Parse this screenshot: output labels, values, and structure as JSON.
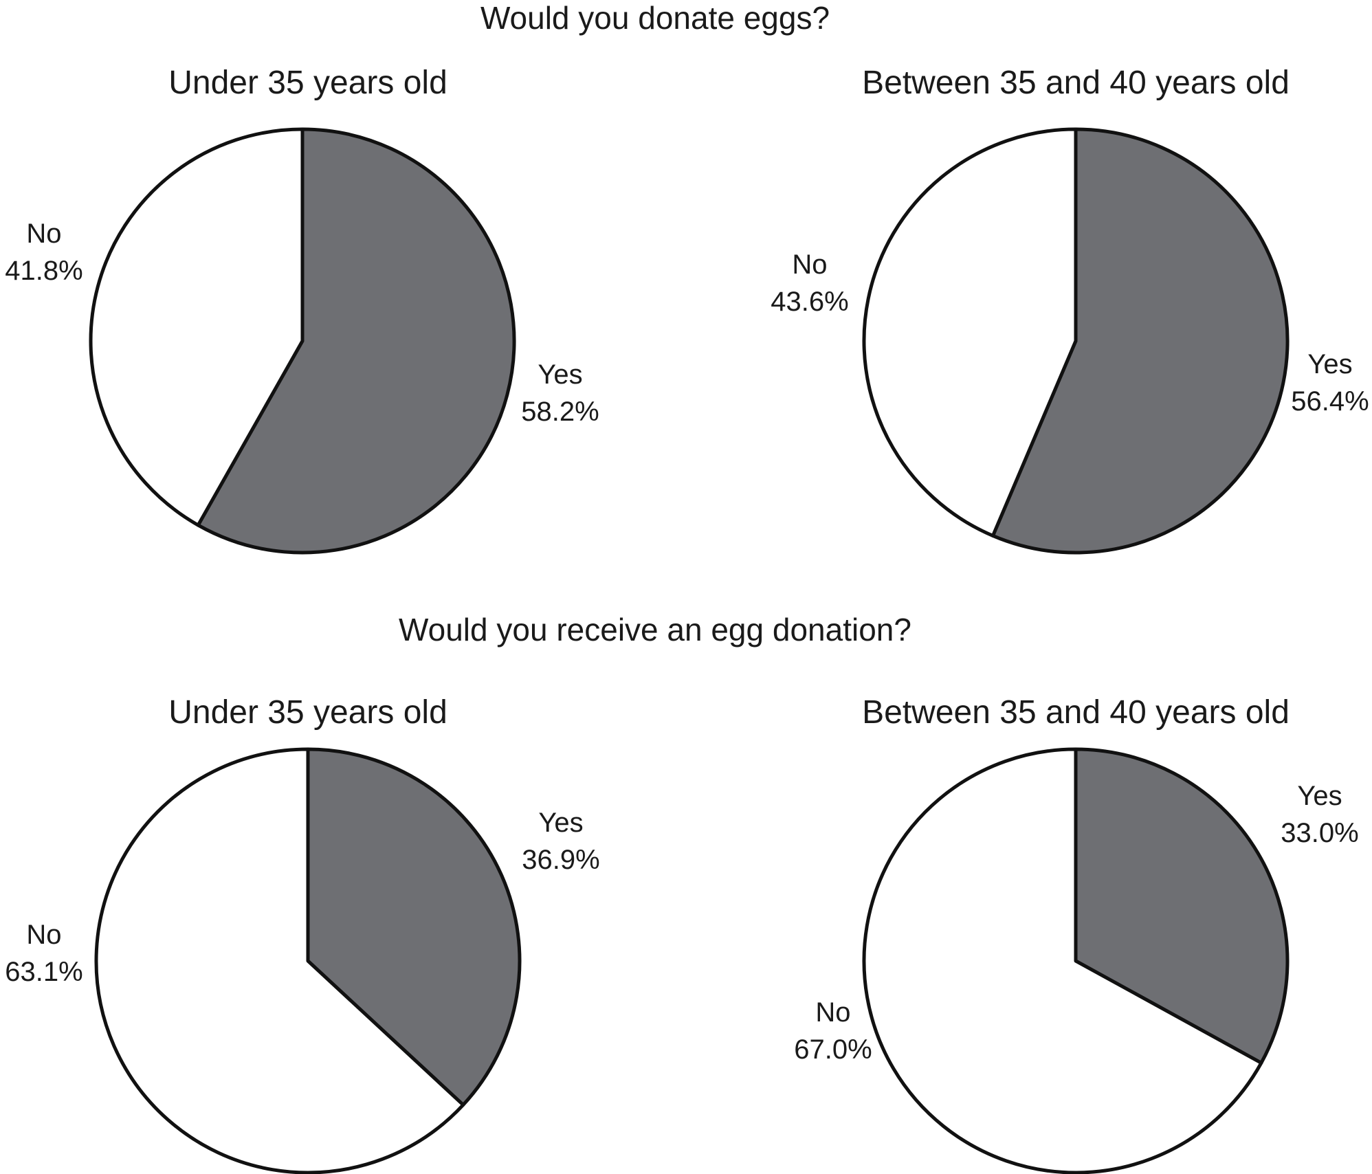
{
  "chart_data": [
    {
      "type": "pie",
      "section_title": "Would you donate eggs?",
      "title": "Under 35 years old",
      "slices": [
        {
          "label": "Yes",
          "value": 58.2,
          "value_label": "58.2%",
          "color": "#6e6f73"
        },
        {
          "label": "No",
          "value": 41.8,
          "value_label": "41.8%",
          "color": "#ffffff"
        }
      ]
    },
    {
      "type": "pie",
      "section_title": "Would you donate eggs?",
      "title": "Between 35 and 40 years old",
      "slices": [
        {
          "label": "Yes",
          "value": 56.4,
          "value_label": "56.4%",
          "color": "#6e6f73"
        },
        {
          "label": "No",
          "value": 43.6,
          "value_label": "43.6%",
          "color": "#ffffff"
        }
      ]
    },
    {
      "type": "pie",
      "section_title": "Would you receive an egg donation?",
      "title": "Under 35 years old",
      "slices": [
        {
          "label": "Yes",
          "value": 36.9,
          "value_label": "36.9%",
          "color": "#6e6f73"
        },
        {
          "label": "No",
          "value": 63.1,
          "value_label": "63.1%",
          "color": "#ffffff"
        }
      ]
    },
    {
      "type": "pie",
      "section_title": "Would you receive an egg donation?",
      "title": "Between 35 and 40 years old",
      "slices": [
        {
          "label": "Yes",
          "value": 33.0,
          "value_label": "33.0%",
          "color": "#6e6f73"
        },
        {
          "label": "No",
          "value": 67.0,
          "value_label": "67.0%",
          "color": "#ffffff"
        }
      ]
    }
  ],
  "sections": [
    {
      "title": "Would you donate eggs?"
    },
    {
      "title": "Would you receive an egg donation?"
    }
  ],
  "style": {
    "yes_color": "#6e6f73",
    "no_color": "#ffffff",
    "outline_color": "#111111"
  }
}
